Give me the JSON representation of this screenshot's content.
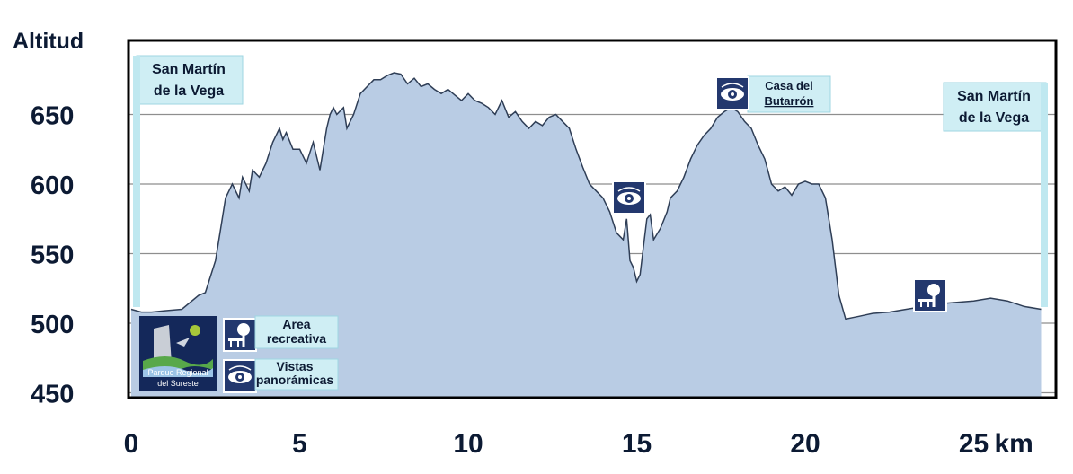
{
  "chart_data": {
    "type": "area",
    "ylabel": "Altitud",
    "x_unit": "km",
    "xlim": [
      0,
      27
    ],
    "ylim": [
      450,
      700
    ],
    "yticks": [
      "450",
      "500",
      "550",
      "600",
      "650"
    ],
    "xticks": [
      "0",
      "5",
      "10",
      "15",
      "20",
      "25"
    ],
    "grid": true,
    "series": [
      {
        "x": [
          0.0,
          0.3,
          0.6,
          1.0,
          1.5,
          2.0,
          2.2,
          2.5,
          2.7,
          2.8,
          3.0,
          3.2,
          3.3,
          3.5,
          3.6,
          3.8,
          4.0,
          4.2,
          4.4,
          4.5,
          4.6,
          4.8,
          5.0,
          5.2,
          5.4,
          5.6,
          5.8,
          5.9,
          6.0,
          6.1,
          6.3,
          6.4,
          6.6,
          6.8,
          7.0,
          7.2,
          7.4,
          7.6,
          7.8,
          8.0,
          8.2,
          8.4,
          8.6,
          8.8,
          9.0,
          9.2,
          9.4,
          9.6,
          9.8,
          10.0,
          10.2,
          10.4,
          10.6,
          10.8,
          11.0,
          11.2,
          11.4,
          11.6,
          11.8,
          12.0,
          12.2,
          12.4,
          12.6,
          12.8,
          13.0,
          13.2,
          13.4,
          13.6,
          13.8,
          14.0,
          14.2,
          14.4,
          14.6,
          14.7,
          14.8,
          14.9,
          15.0,
          15.1,
          15.2,
          15.3,
          15.4,
          15.5,
          15.7,
          15.9,
          16.0,
          16.2,
          16.4,
          16.6,
          16.8,
          17.0,
          17.2,
          17.4,
          17.6,
          17.8,
          18.0,
          18.2,
          18.4,
          18.6,
          18.8,
          19.0,
          19.2,
          19.4,
          19.6,
          19.8,
          20.0,
          20.2,
          20.4,
          20.6,
          20.8,
          21.0,
          21.2,
          21.4,
          21.6,
          21.8,
          22.0,
          22.5,
          23.0,
          23.5,
          24.0,
          24.5,
          25.0,
          25.5,
          26.0,
          26.5,
          27.0
        ],
        "y": [
          510,
          508,
          508,
          509,
          510,
          520,
          522,
          545,
          575,
          590,
          600,
          590,
          605,
          595,
          610,
          605,
          615,
          630,
          640,
          632,
          637,
          625,
          625,
          615,
          630,
          610,
          640,
          650,
          655,
          650,
          655,
          640,
          650,
          665,
          670,
          675,
          675,
          678,
          680,
          679,
          672,
          676,
          670,
          672,
          668,
          665,
          668,
          664,
          660,
          665,
          660,
          658,
          655,
          650,
          660,
          648,
          652,
          645,
          640,
          645,
          642,
          648,
          650,
          645,
          640,
          625,
          612,
          600,
          595,
          590,
          580,
          565,
          560,
          575,
          545,
          540,
          530,
          535,
          555,
          575,
          578,
          560,
          568,
          580,
          590,
          595,
          605,
          618,
          628,
          635,
          640,
          648,
          652,
          655,
          652,
          645,
          640,
          628,
          618,
          600,
          595,
          598,
          592,
          600,
          602,
          600,
          600,
          590,
          560,
          520,
          503,
          504,
          505,
          506,
          507,
          508,
          510,
          512,
          514,
          515,
          516,
          518,
          516,
          512,
          510
        ]
      }
    ]
  },
  "callouts": {
    "start": [
      "San Martín",
      "de la Vega"
    ],
    "end": [
      "San Martín",
      "de la Vega"
    ],
    "casa": [
      "Casa del",
      "Butarrón"
    ]
  },
  "legend": {
    "logo": [
      "Parque Regional",
      "del Sureste"
    ],
    "area": [
      "Area",
      "recreativa"
    ],
    "vistas": [
      "Vistas",
      "panorámicas"
    ]
  },
  "colors": {
    "fill": "#b9cce4",
    "line": "#2f3e56",
    "icon": "#23386e",
    "label_bg": "#cfeef4",
    "frame": "#000000"
  }
}
